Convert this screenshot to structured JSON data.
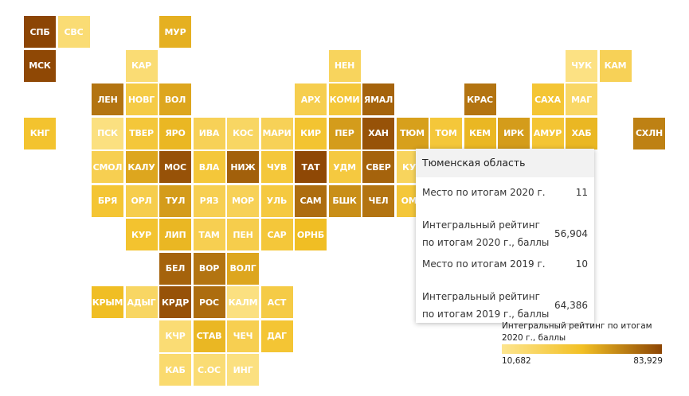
{
  "colors": {
    "scale_low": "#fde58f",
    "scale_mid": "#f2c025",
    "scale_high": "#8c4504"
  },
  "regions": [
    {
      "abbr": "СПБ",
      "value": 83.9,
      "row": 0,
      "col": 0
    },
    {
      "abbr": "СВС",
      "value": 20.0,
      "row": 0,
      "col": 1
    },
    {
      "abbr": "МУР",
      "value": 52.0,
      "row": 0,
      "col": 4
    },
    {
      "abbr": "МСК",
      "value": 83.0,
      "row": 1,
      "col": 0
    },
    {
      "abbr": "КАР",
      "value": 20.0,
      "row": 1,
      "col": 3
    },
    {
      "abbr": "НЕН",
      "value": 28.0,
      "row": 1,
      "col": 9
    },
    {
      "abbr": "ЧУК",
      "value": 15.0,
      "row": 1,
      "col": 16
    },
    {
      "abbr": "КАМ",
      "value": 30.0,
      "row": 1,
      "col": 17
    },
    {
      "abbr": "ЛЕН",
      "value": 70.0,
      "row": 2,
      "col": 2
    },
    {
      "abbr": "НОВГ",
      "value": 36.0,
      "row": 2,
      "col": 3
    },
    {
      "abbr": "ВОЛ",
      "value": 55.0,
      "row": 2,
      "col": 4
    },
    {
      "abbr": "АРХ",
      "value": 33.0,
      "row": 2,
      "col": 8
    },
    {
      "abbr": "КОМИ",
      "value": 40.0,
      "row": 2,
      "col": 9
    },
    {
      "abbr": "ЯМАЛ",
      "value": 75.0,
      "row": 2,
      "col": 10
    },
    {
      "abbr": "КРАС",
      "value": 70.0,
      "row": 2,
      "col": 13
    },
    {
      "abbr": "САХА",
      "value": 42.0,
      "row": 2,
      "col": 15
    },
    {
      "abbr": "МАГ",
      "value": 25.0,
      "row": 2,
      "col": 16
    },
    {
      "abbr": "КНГ",
      "value": 44.0,
      "row": 3,
      "col": 0
    },
    {
      "abbr": "ПСК",
      "value": 16.0,
      "row": 3,
      "col": 2
    },
    {
      "abbr": "ТВЕР",
      "value": 40.0,
      "row": 3,
      "col": 3
    },
    {
      "abbr": "ЯРО",
      "value": 50.0,
      "row": 3,
      "col": 4
    },
    {
      "abbr": "ИВА",
      "value": 30.0,
      "row": 3,
      "col": 5
    },
    {
      "abbr": "КОС",
      "value": 26.0,
      "row": 3,
      "col": 6
    },
    {
      "abbr": "МАРИ",
      "value": 30.0,
      "row": 3,
      "col": 7
    },
    {
      "abbr": "КИР",
      "value": 43.0,
      "row": 3,
      "col": 8
    },
    {
      "abbr": "ПЕР",
      "value": 58.0,
      "row": 3,
      "col": 9
    },
    {
      "abbr": "ХАН",
      "value": 80.0,
      "row": 3,
      "col": 10
    },
    {
      "abbr": "ТЮМ",
      "value": 56.904,
      "row": 3,
      "col": 11,
      "active": true
    },
    {
      "abbr": "ТОМ",
      "value": 40.0,
      "row": 3,
      "col": 12
    },
    {
      "abbr": "КЕМ",
      "value": 50.0,
      "row": 3,
      "col": 13
    },
    {
      "abbr": "ИРК",
      "value": 58.0,
      "row": 3,
      "col": 14
    },
    {
      "abbr": "АМУР",
      "value": 42.0,
      "row": 3,
      "col": 15
    },
    {
      "abbr": "ХАБ",
      "value": 50.0,
      "row": 3,
      "col": 16
    },
    {
      "abbr": "СХЛН",
      "value": 66.0,
      "row": 3,
      "col": 18
    },
    {
      "abbr": "СМОЛ",
      "value": 32.0,
      "row": 4,
      "col": 2
    },
    {
      "abbr": "КАЛУ",
      "value": 55.0,
      "row": 4,
      "col": 3
    },
    {
      "abbr": "МОС",
      "value": 80.0,
      "row": 4,
      "col": 4
    },
    {
      "abbr": "ВЛА",
      "value": 40.0,
      "row": 4,
      "col": 5
    },
    {
      "abbr": "НИЖ",
      "value": 76.0,
      "row": 4,
      "col": 6
    },
    {
      "abbr": "ЧУВ",
      "value": 40.0,
      "row": 4,
      "col": 7
    },
    {
      "abbr": "ТАТ",
      "value": 83.0,
      "row": 4,
      "col": 8
    },
    {
      "abbr": "УДМ",
      "value": 38.0,
      "row": 4,
      "col": 9
    },
    {
      "abbr": "СВЕР",
      "value": 75.0,
      "row": 4,
      "col": 10
    },
    {
      "abbr": "КУР",
      "value": 28.0,
      "row": 4,
      "col": 11
    },
    {
      "abbr": "БРЯ",
      "value": 42.0,
      "row": 5,
      "col": 2
    },
    {
      "abbr": "ОРЛ",
      "value": 34.0,
      "row": 5,
      "col": 3
    },
    {
      "abbr": "ТУЛ",
      "value": 58.0,
      "row": 5,
      "col": 4
    },
    {
      "abbr": "РЯЗ",
      "value": 32.0,
      "row": 5,
      "col": 5
    },
    {
      "abbr": "МОР",
      "value": 30.0,
      "row": 5,
      "col": 6
    },
    {
      "abbr": "УЛЬ",
      "value": 38.0,
      "row": 5,
      "col": 7
    },
    {
      "abbr": "САМ",
      "value": 72.0,
      "row": 5,
      "col": 8
    },
    {
      "abbr": "БШК",
      "value": 62.0,
      "row": 5,
      "col": 9
    },
    {
      "abbr": "ЧЕЛ",
      "value": 70.0,
      "row": 5,
      "col": 10
    },
    {
      "abbr": "ОМС",
      "value": 40.0,
      "row": 5,
      "col": 11
    },
    {
      "abbr": "КУР",
      "value": 44.0,
      "row": 6,
      "col": 3
    },
    {
      "abbr": "ЛИП",
      "value": 50.0,
      "row": 6,
      "col": 4
    },
    {
      "abbr": "ТАМ",
      "value": 32.0,
      "row": 6,
      "col": 5
    },
    {
      "abbr": "ПЕН",
      "value": 34.0,
      "row": 6,
      "col": 6
    },
    {
      "abbr": "САР",
      "value": 40.0,
      "row": 6,
      "col": 7
    },
    {
      "abbr": "ОРНБ",
      "value": 48.0,
      "row": 6,
      "col": 8
    },
    {
      "abbr": "БЕЛ",
      "value": 75.0,
      "row": 7,
      "col": 4
    },
    {
      "abbr": "ВОР",
      "value": 70.0,
      "row": 7,
      "col": 5
    },
    {
      "abbr": "ВОЛГ",
      "value": 55.0,
      "row": 7,
      "col": 6
    },
    {
      "abbr": "КРЫМ",
      "value": 48.0,
      "row": 8,
      "col": 2
    },
    {
      "abbr": "АДЫГ",
      "value": 26.0,
      "row": 8,
      "col": 3
    },
    {
      "abbr": "КРДР",
      "value": 80.0,
      "row": 8,
      "col": 4
    },
    {
      "abbr": "РОС",
      "value": 72.0,
      "row": 8,
      "col": 5
    },
    {
      "abbr": "КАЛМ",
      "value": 16.0,
      "row": 8,
      "col": 6
    },
    {
      "abbr": "АСТ",
      "value": 36.0,
      "row": 8,
      "col": 7
    },
    {
      "abbr": "КЧР",
      "value": 20.0,
      "row": 9,
      "col": 4
    },
    {
      "abbr": "СТАВ",
      "value": 50.0,
      "row": 9,
      "col": 5
    },
    {
      "abbr": "ЧЕЧ",
      "value": 32.0,
      "row": 9,
      "col": 6
    },
    {
      "abbr": "ДАГ",
      "value": 42.0,
      "row": 9,
      "col": 7
    },
    {
      "abbr": "КАБ",
      "value": 22.0,
      "row": 10,
      "col": 4
    },
    {
      "abbr": "С.ОС",
      "value": 20.0,
      "row": 10,
      "col": 5
    },
    {
      "abbr": "ИНГ",
      "value": 16.0,
      "row": 10,
      "col": 6
    }
  ],
  "tooltip": {
    "title": "Тюменская область",
    "rows": [
      {
        "label": "Место по итогам 2020 г.",
        "value": "11"
      },
      {
        "label": "Интегральный рейтинг\nпо итогам 2020 г., баллы",
        "value": "56,904"
      },
      {
        "label": "Место по итогам 2019 г.",
        "value": "10"
      },
      {
        "label": "Интегральный рейтинг\nпо итогам 2019 г., баллы",
        "value": "64,386"
      }
    ]
  },
  "legend": {
    "title": "Интегральный рейтинг по итогам 2020 г., баллы",
    "min_label": "10,682",
    "max_label": "83,929",
    "min": 10.682,
    "max": 83.929
  }
}
